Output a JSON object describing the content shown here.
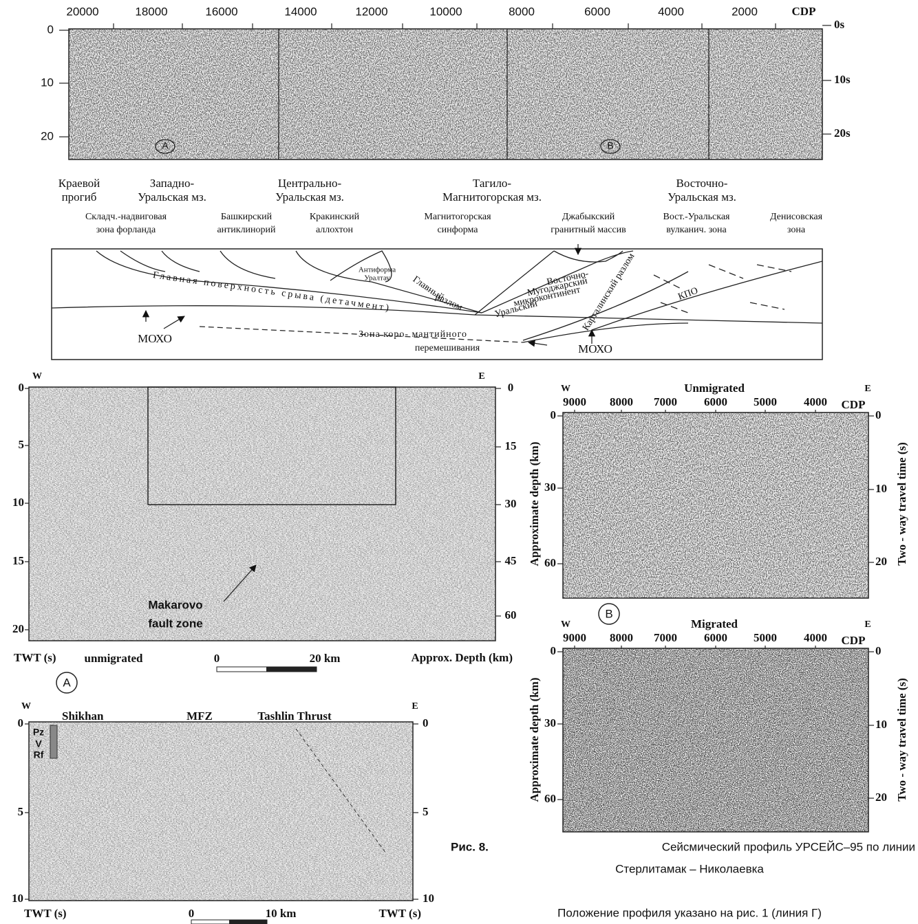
{
  "top_profile": {
    "x_ticks": [
      "20000",
      "18000",
      "16000",
      "14000",
      "12000",
      "10000",
      "8000",
      "6000",
      "4000",
      "2000"
    ],
    "x_label": "CDP",
    "left_ticks": [
      "0",
      "10",
      "20"
    ],
    "right_ticks": [
      "0s",
      "10s",
      "20s"
    ],
    "markers": [
      "A",
      "B"
    ]
  },
  "cross_section": {
    "zones": [
      [
        "Краевой",
        "прогиб"
      ],
      [
        "Западно-",
        "Уральская мз."
      ],
      [
        "Центрально-",
        "Уральская мз."
      ],
      [
        "Тагило-",
        "Магнитогорская мз."
      ],
      [
        "Восточно-",
        "Уральская мз."
      ]
    ],
    "subzones": [
      [
        "Складч.-надвиговая",
        "зона форланда"
      ],
      [
        "Башкирский",
        "антиклинорий"
      ],
      [
        "Кракинский",
        "аллохтон"
      ],
      [
        "Магнитогорская",
        "синформа"
      ],
      [
        "Джабыкский",
        "гранитный массив"
      ],
      [
        "Вост.-Уральская",
        "вулканич. зона"
      ],
      [
        "Денисовская",
        "зона"
      ]
    ],
    "labels": {
      "antiform": [
        "Антиформа",
        "Уралтау"
      ],
      "detachment": "Главная поверхность срыва (детачмент)",
      "main_fault": [
        "Главный",
        "разлом"
      ],
      "uralsky": "Уральский",
      "microcontinent": [
        "Восточно-",
        "Мугоджарский",
        "микроконтинент"
      ],
      "kartaly": "Карталинский разлом",
      "kpo": "КПО",
      "mixing": [
        "Зона коро- мантийного",
        "перемешивания"
      ],
      "moho": [
        "МОХО",
        "МОХО"
      ]
    }
  },
  "panel_a": {
    "west": "W",
    "east": "E",
    "left_ticks": [
      "0",
      "5",
      "10",
      "15",
      "20"
    ],
    "right_ticks": [
      "0",
      "15",
      "30",
      "45",
      "60"
    ],
    "annotation": [
      "Makarovo",
      "fault zone"
    ],
    "left_label": "TWT (s)",
    "mode": "unmigrated",
    "scale": [
      "0",
      "20 km"
    ],
    "right_label": "Approx. Depth (km)",
    "marker": "A"
  },
  "panel_b": {
    "marker": "B",
    "unmigrated": {
      "title": "Unmigrated",
      "west": "W",
      "east": "E",
      "x_ticks": [
        "9000",
        "8000",
        "7000",
        "6000",
        "5000",
        "4000"
      ],
      "x_label": "CDP",
      "left_ticks": [
        "0",
        "30",
        "60"
      ],
      "right_ticks": [
        "0",
        "10",
        "20"
      ],
      "left_label": "Approximate depth (km)",
      "right_label": "Two - way travel time (s)"
    },
    "migrated": {
      "title": "Migrated",
      "west": "W",
      "east": "E",
      "x_ticks": [
        "9000",
        "8000",
        "7000",
        "6000",
        "5000",
        "4000"
      ],
      "x_label": "CDP",
      "left_ticks": [
        "0",
        "30",
        "60"
      ],
      "right_ticks": [
        "0",
        "10",
        "20"
      ],
      "left_label": "Approximate depth (km)",
      "right_label": "Two - way travel time (s)"
    }
  },
  "panel_c": {
    "west": "W",
    "east": "E",
    "labels": [
      "Shikhan",
      "MFZ",
      "Tashlin Thrust"
    ],
    "column": [
      "Pz",
      "V",
      "Rf"
    ],
    "left_ticks": [
      "0",
      "5",
      "10"
    ],
    "right_ticks": [
      "0",
      "5",
      "10"
    ],
    "bottom_left": "TWT (s)",
    "scale": [
      "0",
      "10 km"
    ],
    "bottom_right": "TWT (s)"
  },
  "caption": {
    "figure": "Рис. 8.",
    "title": [
      "Сейсмический профиль УРСЕЙС–95 по линии",
      "Стерлитамак – Николаевка"
    ],
    "note": "Положение профиля указано на рис. 1 (линия Г)"
  }
}
